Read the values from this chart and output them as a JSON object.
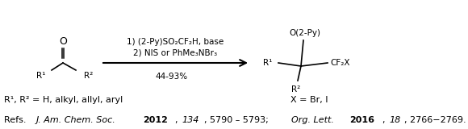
{
  "bg_color": "#ffffff",
  "fig_width": 5.8,
  "fig_height": 1.6,
  "dpi": 100,
  "reagent_line1": "1) (2-Py)SO₂CF₂H, base",
  "reagent_line2": "2) NIS or PhMe₃NBr₃",
  "yield_text": "44-93%",
  "reactant_O": "O",
  "reactant_R1": "R¹",
  "reactant_R2": "R²",
  "product_O2Py": "O(2-Py)",
  "product_R1": "R¹",
  "product_R2": "R²",
  "product_CF2X": "CF₂X",
  "footnote_R1R2": "R¹, R² = H, alkyl, allyl, aryl",
  "footnote_X": "X = Br, I",
  "arrow_color": "#000000",
  "text_color": "#000000",
  "font_size_reagent": 7.5,
  "font_size_mol": 9.0,
  "font_size_sub": 7.5,
  "font_size_footnote": 8.0,
  "font_size_refs": 8.0
}
